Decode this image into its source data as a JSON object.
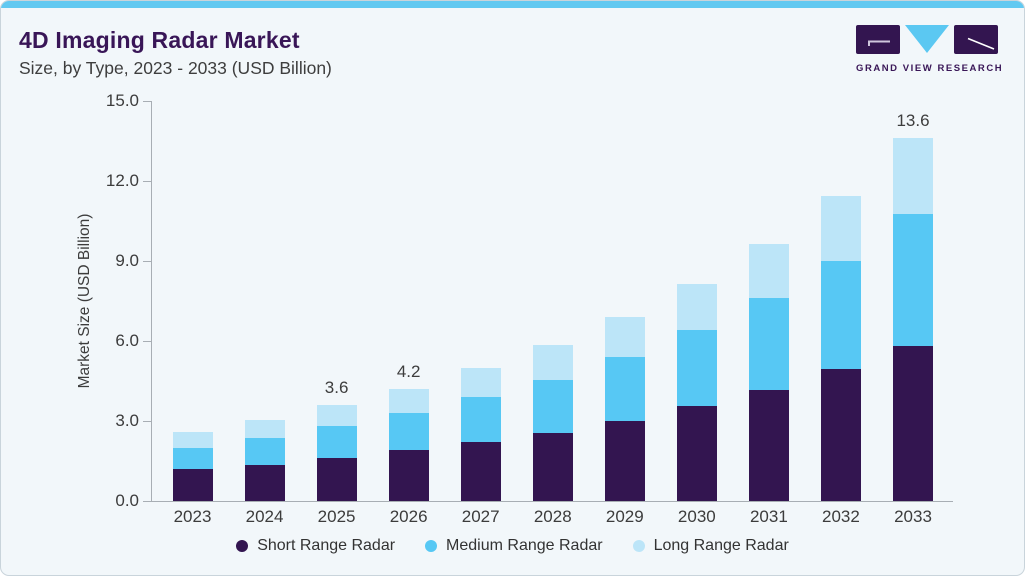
{
  "page": {
    "title": "4D Imaging Radar Market",
    "subtitle": "Size, by Type, 2023 - 2033 (USD Billion)",
    "brand": "GRAND VIEW RESEARCH"
  },
  "colors": {
    "accent_bar": "#62c9f1",
    "card_background": "#f2f7fa",
    "title_text": "#391657",
    "axis": "#a8aeb4",
    "short_range": "#331550",
    "medium_range": "#57c8f4",
    "long_range": "#bce5f8"
  },
  "chart_data": {
    "type": "bar",
    "stacked": true,
    "title": "4D Imaging Radar Market Size, by Type, 2023 - 2033 (USD Billion)",
    "xlabel": "",
    "ylabel": "Market Size (USD Billion)",
    "ylim": [
      0,
      15
    ],
    "ytick_values": [
      0,
      3,
      6,
      9,
      12,
      15
    ],
    "ytick_labels": [
      "0.0",
      "3.0",
      "6.0",
      "9.0",
      "12.0",
      "15.0"
    ],
    "grid": false,
    "legend_position": "bottom",
    "categories": [
      "2023",
      "2024",
      "2025",
      "2026",
      "2027",
      "2028",
      "2029",
      "2030",
      "2031",
      "2032",
      "2033"
    ],
    "series": [
      {
        "name": "Short Range Radar",
        "key": "short-range",
        "color": "#331550",
        "values": [
          1.2,
          1.35,
          1.6,
          1.9,
          2.2,
          2.55,
          3.0,
          3.55,
          4.15,
          4.95,
          5.8
        ]
      },
      {
        "name": "Medium Range Radar",
        "key": "medium-range",
        "color": "#57c8f4",
        "values": [
          0.8,
          1.0,
          1.2,
          1.4,
          1.7,
          2.0,
          2.4,
          2.85,
          3.45,
          4.05,
          4.95
        ]
      },
      {
        "name": "Long Range Radar",
        "key": "long-range",
        "color": "#bce5f8",
        "values": [
          0.6,
          0.7,
          0.8,
          0.9,
          1.1,
          1.3,
          1.5,
          1.75,
          2.05,
          2.45,
          2.85
        ]
      }
    ],
    "totals": [
      2.6,
      3.05,
      3.6,
      4.2,
      5.0,
      5.85,
      6.9,
      8.15,
      9.65,
      11.45,
      13.6
    ],
    "bar_labels": [
      "",
      "",
      "3.6",
      "4.2",
      "",
      "",
      "",
      "",
      "",
      "",
      "13.6"
    ]
  }
}
